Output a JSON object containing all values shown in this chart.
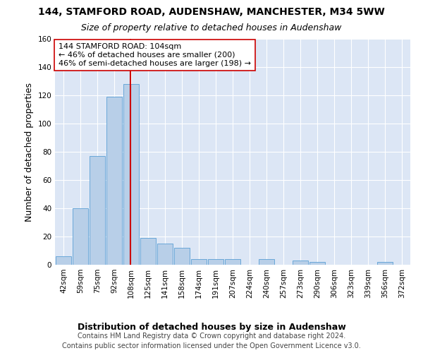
{
  "title_line1": "144, STAMFORD ROAD, AUDENSHAW, MANCHESTER, M34 5WW",
  "title_line2": "Size of property relative to detached houses in Audenshaw",
  "xlabel": "Distribution of detached houses by size in Audenshaw",
  "ylabel": "Number of detached properties",
  "footer_line1": "Contains HM Land Registry data © Crown copyright and database right 2024.",
  "footer_line2": "Contains public sector information licensed under the Open Government Licence v3.0.",
  "bar_labels": [
    "42sqm",
    "59sqm",
    "75sqm",
    "92sqm",
    "108sqm",
    "125sqm",
    "141sqm",
    "158sqm",
    "174sqm",
    "191sqm",
    "207sqm",
    "224sqm",
    "240sqm",
    "257sqm",
    "273sqm",
    "290sqm",
    "306sqm",
    "323sqm",
    "339sqm",
    "356sqm",
    "372sqm"
  ],
  "bar_values": [
    6,
    40,
    77,
    119,
    128,
    19,
    15,
    12,
    4,
    4,
    4,
    0,
    4,
    0,
    3,
    2,
    0,
    0,
    0,
    2,
    0
  ],
  "bar_color": "#b8cfe8",
  "bar_edge_color": "#5a9fd4",
  "background_color": "#dce6f5",
  "grid_color": "#ffffff",
  "vline_x": 3.95,
  "vline_color": "#cc0000",
  "annotation_line1": "144 STAMFORD ROAD: 104sqm",
  "annotation_line2": "← 46% of detached houses are smaller (200)",
  "annotation_line3": "46% of semi-detached houses are larger (198) →",
  "annotation_box_color": "#ffffff",
  "annotation_box_edge": "#cc0000",
  "ylim": [
    0,
    160
  ],
  "yticks": [
    0,
    20,
    40,
    60,
    80,
    100,
    120,
    140,
    160
  ],
  "title_fontsize": 10,
  "subtitle_fontsize": 9,
  "ylabel_fontsize": 9,
  "xlabel_fontsize": 9,
  "tick_fontsize": 7.5,
  "footer_fontsize": 7,
  "annotation_fontsize": 8
}
